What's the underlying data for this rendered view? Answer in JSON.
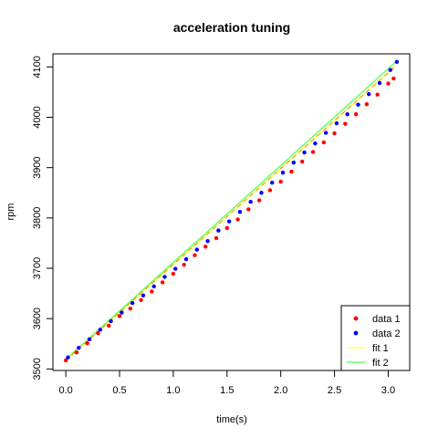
{
  "chart_data": {
    "type": "scatter",
    "title": "acceleration tuning",
    "xlabel": "time(s)",
    "ylabel": "rpm",
    "xlim": [
      -0.12,
      3.2
    ],
    "ylim": [
      3497,
      4126
    ],
    "x_ticks": [
      0.0,
      0.5,
      1.0,
      1.5,
      2.0,
      2.5,
      3.0
    ],
    "x_tick_labels": [
      "0.0",
      "0.5",
      "1.0",
      "1.5",
      "2.0",
      "2.5",
      "3.0"
    ],
    "y_ticks": [
      3500,
      3600,
      3700,
      3800,
      3900,
      4000,
      4100
    ],
    "y_tick_labels": [
      "3500",
      "3600",
      "3700",
      "3800",
      "3900",
      "4000",
      "4100"
    ],
    "grid": false,
    "legend_position": "bottom-right",
    "series": [
      {
        "name": "data 1",
        "kind": "points",
        "color": "#ff0000",
        "x": [
          0.0,
          0.1,
          0.2,
          0.3,
          0.4,
          0.5,
          0.6,
          0.7,
          0.8,
          0.9,
          1.0,
          1.1,
          1.2,
          1.3,
          1.4,
          1.5,
          1.6,
          1.7,
          1.8,
          1.9,
          2.0,
          2.1,
          2.2,
          2.3,
          2.4,
          2.5,
          2.6,
          2.7,
          2.8,
          2.9,
          3.0,
          3.05
        ],
        "y": [
          3517,
          3533,
          3551,
          3571,
          3586,
          3605,
          3620,
          3637,
          3654,
          3672,
          3689,
          3707,
          3726,
          3743,
          3760,
          3780,
          3797,
          3817,
          3835,
          3855,
          3872,
          3892,
          3912,
          3931,
          3950,
          3968,
          3987,
          4006,
          4026,
          4045,
          4067,
          4077
        ]
      },
      {
        "name": "data 2",
        "kind": "points",
        "color": "#0000ff",
        "x": [
          0.02,
          0.12,
          0.22,
          0.32,
          0.42,
          0.52,
          0.62,
          0.72,
          0.82,
          0.92,
          1.02,
          1.12,
          1.22,
          1.32,
          1.42,
          1.52,
          1.62,
          1.72,
          1.82,
          1.92,
          2.02,
          2.12,
          2.22,
          2.32,
          2.42,
          2.52,
          2.62,
          2.72,
          2.82,
          2.92,
          3.02,
          3.08
        ],
        "y": [
          3523,
          3542,
          3559,
          3578,
          3595,
          3612,
          3631,
          3646,
          3664,
          3683,
          3699,
          3718,
          3737,
          3754,
          3775,
          3793,
          3812,
          3832,
          3850,
          3870,
          3890,
          3910,
          3930,
          3948,
          3969,
          3988,
          4006,
          4025,
          4046,
          4068,
          4094,
          4110
        ]
      },
      {
        "name": "fit 1",
        "kind": "line",
        "color": "#ffff66",
        "x": [
          0.0,
          3.07
        ],
        "y": [
          3517,
          4102
        ]
      },
      {
        "name": "fit 2",
        "kind": "line",
        "color": "#66ff66",
        "x": [
          0.0,
          3.07
        ],
        "y": [
          3519,
          4110
        ]
      }
    ]
  }
}
